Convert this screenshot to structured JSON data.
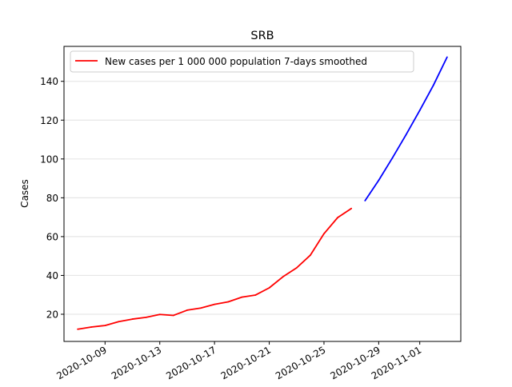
{
  "chart_data": {
    "type": "line",
    "title": "SRB",
    "xlabel": "",
    "ylabel": "Cases",
    "x_type": "date",
    "xlim": [
      "2020-10-06",
      "2020-11-04"
    ],
    "ylim": [
      6,
      158
    ],
    "x_ticks": [
      "2020-10-09",
      "2020-10-13",
      "2020-10-17",
      "2020-10-21",
      "2020-10-25",
      "2020-10-29",
      "2020-11-01"
    ],
    "y_ticks": [
      20,
      40,
      60,
      80,
      100,
      120,
      140
    ],
    "grid": "horizontal",
    "legend_position": "top-left",
    "series": [
      {
        "name": "New cases per 1 000 000 population 7-days smoothed",
        "color": "#ff0000",
        "in_legend": true,
        "x": [
          "2020-10-07",
          "2020-10-08",
          "2020-10-09",
          "2020-10-10",
          "2020-10-11",
          "2020-10-12",
          "2020-10-13",
          "2020-10-14",
          "2020-10-15",
          "2020-10-16",
          "2020-10-17",
          "2020-10-18",
          "2020-10-19",
          "2020-10-20",
          "2020-10-21",
          "2020-10-22",
          "2020-10-23",
          "2020-10-24",
          "2020-10-25",
          "2020-10-26",
          "2020-10-27"
        ],
        "values": [
          12.3,
          13.4,
          14.2,
          16.2,
          17.5,
          18.4,
          19.9,
          19.4,
          22.1,
          23.2,
          25.1,
          26.4,
          28.8,
          29.9,
          33.6,
          39.3,
          43.9,
          50.4,
          61.5,
          69.8,
          74.5
        ]
      },
      {
        "color": "#0000ff",
        "in_legend": false,
        "x": [
          "2020-10-28",
          "2020-10-29",
          "2020-10-30",
          "2020-10-31",
          "2020-11-01",
          "2020-11-02",
          "2020-11-03"
        ],
        "values": [
          78.5,
          89.0,
          100.5,
          112.5,
          125.0,
          138.0,
          152.5
        ]
      }
    ]
  }
}
